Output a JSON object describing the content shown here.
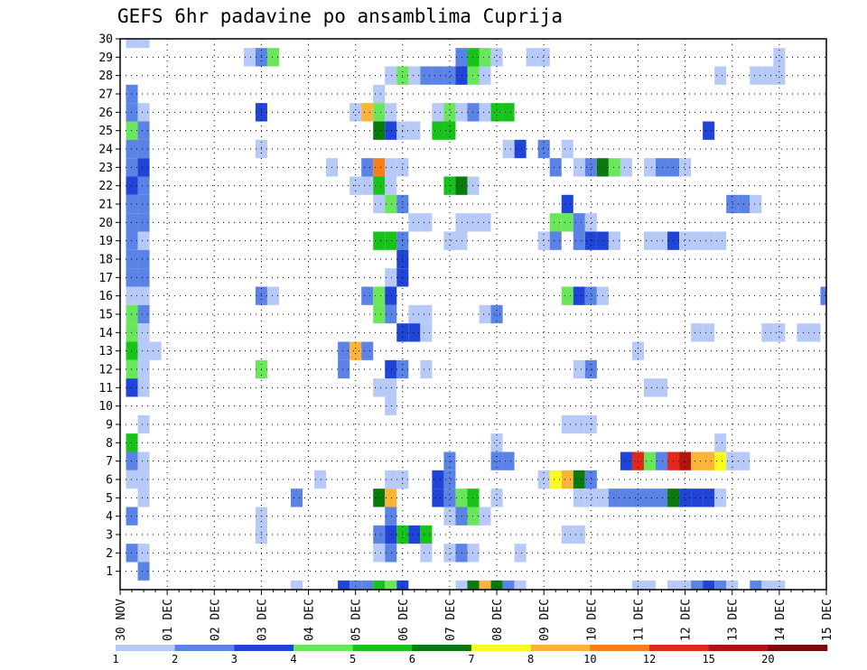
{
  "chart_data": {
    "type": "heatmap",
    "title": "GEFS 6hr padavine po ansamblima Cuprija",
    "xlabel": "",
    "ylabel": "",
    "x_tick_labels": [
      "30 NOV",
      "01 DEC",
      "02 DEC",
      "03 DEC",
      "04 DEC",
      "05 DEC",
      "06 DEC",
      "07 DEC",
      "08 DEC",
      "09 DEC",
      "10 DEC",
      "11 DEC",
      "12 DEC",
      "13 DEC",
      "14 DEC",
      "15 DEC"
    ],
    "x_steps": 60,
    "y_tick_labels": [
      "1",
      "2",
      "3",
      "4",
      "5",
      "6",
      "7",
      "8",
      "9",
      "10",
      "11",
      "12",
      "13",
      "14",
      "15",
      "16",
      "17",
      "18",
      "19",
      "20",
      "21",
      "22",
      "23",
      "24",
      "25",
      "26",
      "27",
      "28",
      "29",
      "30"
    ],
    "y_min": 0,
    "y_max": 30,
    "colorbar": {
      "labels": [
        "1",
        "2",
        "3",
        "4",
        "5",
        "6",
        "7",
        "8",
        "10",
        "12",
        "15",
        "20"
      ],
      "colors": [
        "#b6c9f7",
        "#5b83e6",
        "#1f44d6",
        "#69e65c",
        "#19c21a",
        "#0b7a0e",
        "#fafa1e",
        "#fbb33a",
        "#f77e1c",
        "#e0291b",
        "#b0150f",
        "#7a0a0a"
      ]
    },
    "cells": [
      [
        1,
        30,
        1
      ],
      [
        2,
        30,
        1
      ],
      [
        11,
        29,
        1
      ],
      [
        12,
        29,
        2
      ],
      [
        13,
        29,
        4
      ],
      [
        29,
        29,
        2
      ],
      [
        30,
        29,
        5
      ],
      [
        31,
        29,
        4
      ],
      [
        32,
        29,
        1
      ],
      [
        35,
        29,
        1
      ],
      [
        36,
        29,
        1
      ],
      [
        56,
        29,
        1
      ],
      [
        23,
        28,
        1
      ],
      [
        24,
        28,
        4
      ],
      [
        25,
        28,
        1
      ],
      [
        26,
        28,
        2
      ],
      [
        27,
        28,
        2
      ],
      [
        28,
        28,
        2
      ],
      [
        29,
        28,
        3
      ],
      [
        30,
        28,
        4
      ],
      [
        31,
        28,
        1
      ],
      [
        51,
        28,
        1
      ],
      [
        54,
        28,
        1
      ],
      [
        55,
        28,
        1
      ],
      [
        56,
        28,
        1
      ],
      [
        1,
        27,
        2
      ],
      [
        22,
        27,
        1
      ],
      [
        1,
        26,
        2
      ],
      [
        2,
        26,
        1
      ],
      [
        12,
        26,
        3
      ],
      [
        20,
        26,
        1
      ],
      [
        21,
        26,
        8
      ],
      [
        22,
        26,
        4
      ],
      [
        23,
        26,
        1
      ],
      [
        27,
        26,
        1
      ],
      [
        28,
        26,
        4
      ],
      [
        29,
        26,
        1
      ],
      [
        30,
        26,
        2
      ],
      [
        31,
        26,
        1
      ],
      [
        32,
        26,
        5
      ],
      [
        33,
        26,
        5
      ],
      [
        1,
        25,
        4
      ],
      [
        2,
        25,
        2
      ],
      [
        22,
        25,
        6
      ],
      [
        23,
        25,
        3
      ],
      [
        24,
        25,
        1
      ],
      [
        25,
        25,
        1
      ],
      [
        27,
        25,
        5
      ],
      [
        28,
        25,
        5
      ],
      [
        50,
        25,
        3
      ],
      [
        1,
        24,
        2
      ],
      [
        2,
        24,
        2
      ],
      [
        12,
        24,
        1
      ],
      [
        33,
        24,
        1
      ],
      [
        34,
        24,
        3
      ],
      [
        36,
        24,
        2
      ],
      [
        38,
        24,
        1
      ],
      [
        1,
        23,
        2
      ],
      [
        2,
        23,
        3
      ],
      [
        18,
        23,
        1
      ],
      [
        21,
        23,
        2
      ],
      [
        22,
        23,
        9
      ],
      [
        23,
        23,
        1
      ],
      [
        24,
        23,
        1
      ],
      [
        37,
        23,
        2
      ],
      [
        39,
        23,
        1
      ],
      [
        40,
        23,
        2
      ],
      [
        41,
        23,
        6
      ],
      [
        42,
        23,
        4
      ],
      [
        43,
        23,
        1
      ],
      [
        45,
        23,
        1
      ],
      [
        46,
        23,
        2
      ],
      [
        47,
        23,
        2
      ],
      [
        48,
        23,
        1
      ],
      [
        1,
        22,
        3
      ],
      [
        2,
        22,
        2
      ],
      [
        20,
        22,
        1
      ],
      [
        21,
        22,
        1
      ],
      [
        22,
        22,
        5
      ],
      [
        23,
        22,
        1
      ],
      [
        28,
        22,
        5
      ],
      [
        29,
        22,
        6
      ],
      [
        30,
        22,
        1
      ],
      [
        1,
        21,
        2
      ],
      [
        2,
        21,
        2
      ],
      [
        22,
        21,
        1
      ],
      [
        23,
        21,
        4
      ],
      [
        24,
        21,
        2
      ],
      [
        38,
        21,
        3
      ],
      [
        52,
        21,
        2
      ],
      [
        53,
        21,
        2
      ],
      [
        54,
        21,
        1
      ],
      [
        1,
        20,
        2
      ],
      [
        2,
        20,
        2
      ],
      [
        25,
        20,
        1
      ],
      [
        26,
        20,
        1
      ],
      [
        29,
        20,
        1
      ],
      [
        30,
        20,
        1
      ],
      [
        31,
        20,
        1
      ],
      [
        37,
        20,
        4
      ],
      [
        38,
        20,
        4
      ],
      [
        39,
        20,
        2
      ],
      [
        40,
        20,
        1
      ],
      [
        1,
        19,
        2
      ],
      [
        2,
        19,
        1
      ],
      [
        22,
        19,
        5
      ],
      [
        23,
        19,
        5
      ],
      [
        24,
        19,
        2
      ],
      [
        28,
        19,
        1
      ],
      [
        29,
        19,
        1
      ],
      [
        36,
        19,
        1
      ],
      [
        37,
        19,
        2
      ],
      [
        39,
        19,
        2
      ],
      [
        40,
        19,
        3
      ],
      [
        41,
        19,
        3
      ],
      [
        42,
        19,
        1
      ],
      [
        45,
        19,
        1
      ],
      [
        46,
        19,
        1
      ],
      [
        47,
        19,
        3
      ],
      [
        48,
        19,
        1
      ],
      [
        49,
        19,
        1
      ],
      [
        50,
        19,
        1
      ],
      [
        51,
        19,
        1
      ],
      [
        1,
        18,
        2
      ],
      [
        2,
        18,
        2
      ],
      [
        24,
        18,
        3
      ],
      [
        1,
        17,
        2
      ],
      [
        2,
        17,
        2
      ],
      [
        23,
        17,
        1
      ],
      [
        24,
        17,
        3
      ],
      [
        1,
        16,
        1
      ],
      [
        2,
        16,
        1
      ],
      [
        12,
        16,
        2
      ],
      [
        13,
        16,
        1
      ],
      [
        21,
        16,
        2
      ],
      [
        22,
        16,
        4
      ],
      [
        23,
        16,
        3
      ],
      [
        38,
        16,
        4
      ],
      [
        39,
        16,
        3
      ],
      [
        40,
        16,
        2
      ],
      [
        41,
        16,
        1
      ],
      [
        60,
        16,
        2
      ],
      [
        1,
        15,
        4
      ],
      [
        2,
        15,
        2
      ],
      [
        22,
        15,
        4
      ],
      [
        23,
        15,
        2
      ],
      [
        25,
        15,
        1
      ],
      [
        26,
        15,
        1
      ],
      [
        31,
        15,
        1
      ],
      [
        32,
        15,
        2
      ],
      [
        1,
        14,
        4
      ],
      [
        2,
        14,
        1
      ],
      [
        24,
        14,
        3
      ],
      [
        25,
        14,
        3
      ],
      [
        26,
        14,
        1
      ],
      [
        49,
        14,
        1
      ],
      [
        50,
        14,
        1
      ],
      [
        55,
        14,
        1
      ],
      [
        56,
        14,
        1
      ],
      [
        58,
        14,
        1
      ],
      [
        59,
        14,
        1
      ],
      [
        1,
        13,
        5
      ],
      [
        2,
        13,
        1
      ],
      [
        3,
        13,
        1
      ],
      [
        19,
        13,
        2
      ],
      [
        20,
        13,
        8
      ],
      [
        21,
        13,
        2
      ],
      [
        44,
        13,
        1
      ],
      [
        1,
        12,
        4
      ],
      [
        2,
        12,
        1
      ],
      [
        12,
        12,
        4
      ],
      [
        19,
        12,
        2
      ],
      [
        23,
        12,
        3
      ],
      [
        24,
        12,
        2
      ],
      [
        26,
        12,
        1
      ],
      [
        39,
        12,
        1
      ],
      [
        40,
        12,
        2
      ],
      [
        1,
        11,
        3
      ],
      [
        2,
        11,
        1
      ],
      [
        22,
        11,
        1
      ],
      [
        23,
        11,
        1
      ],
      [
        45,
        11,
        1
      ],
      [
        46,
        11,
        1
      ],
      [
        23,
        10,
        1
      ],
      [
        2,
        9,
        1
      ],
      [
        38,
        9,
        1
      ],
      [
        39,
        9,
        1
      ],
      [
        40,
        9,
        1
      ],
      [
        1,
        8,
        5
      ],
      [
        32,
        8,
        1
      ],
      [
        51,
        8,
        1
      ],
      [
        1,
        7,
        2
      ],
      [
        2,
        7,
        1
      ],
      [
        28,
        7,
        2
      ],
      [
        32,
        7,
        2
      ],
      [
        33,
        7,
        2
      ],
      [
        43,
        7,
        3
      ],
      [
        44,
        7,
        10
      ],
      [
        45,
        7,
        4
      ],
      [
        46,
        7,
        2
      ],
      [
        47,
        7,
        10
      ],
      [
        48,
        7,
        11
      ],
      [
        49,
        7,
        8
      ],
      [
        50,
        7,
        8
      ],
      [
        51,
        7,
        7
      ],
      [
        52,
        7,
        1
      ],
      [
        53,
        7,
        1
      ],
      [
        1,
        6,
        1
      ],
      [
        2,
        6,
        1
      ],
      [
        17,
        6,
        1
      ],
      [
        23,
        6,
        1
      ],
      [
        24,
        6,
        1
      ],
      [
        27,
        6,
        3
      ],
      [
        28,
        6,
        2
      ],
      [
        36,
        6,
        1
      ],
      [
        37,
        6,
        7
      ],
      [
        38,
        6,
        8
      ],
      [
        39,
        6,
        6
      ],
      [
        40,
        6,
        2
      ],
      [
        2,
        5,
        1
      ],
      [
        15,
        5,
        2
      ],
      [
        22,
        5,
        6
      ],
      [
        23,
        5,
        8
      ],
      [
        27,
        5,
        3
      ],
      [
        28,
        5,
        2
      ],
      [
        29,
        5,
        4
      ],
      [
        30,
        5,
        5
      ],
      [
        32,
        5,
        1
      ],
      [
        39,
        5,
        1
      ],
      [
        40,
        5,
        1
      ],
      [
        41,
        5,
        1
      ],
      [
        42,
        5,
        2
      ],
      [
        43,
        5,
        2
      ],
      [
        44,
        5,
        2
      ],
      [
        45,
        5,
        2
      ],
      [
        46,
        5,
        2
      ],
      [
        47,
        5,
        6
      ],
      [
        48,
        5,
        3
      ],
      [
        49,
        5,
        3
      ],
      [
        50,
        5,
        3
      ],
      [
        51,
        5,
        1
      ],
      [
        1,
        4,
        2
      ],
      [
        12,
        4,
        1
      ],
      [
        23,
        4,
        2
      ],
      [
        28,
        4,
        1
      ],
      [
        29,
        4,
        2
      ],
      [
        30,
        4,
        4
      ],
      [
        31,
        4,
        1
      ],
      [
        12,
        3,
        1
      ],
      [
        22,
        3,
        2
      ],
      [
        23,
        3,
        3
      ],
      [
        24,
        3,
        5
      ],
      [
        25,
        3,
        3
      ],
      [
        26,
        3,
        5
      ],
      [
        38,
        3,
        1
      ],
      [
        39,
        3,
        1
      ],
      [
        1,
        2,
        2
      ],
      [
        2,
        2,
        1
      ],
      [
        22,
        2,
        1
      ],
      [
        23,
        2,
        2
      ],
      [
        26,
        2,
        1
      ],
      [
        28,
        2,
        1
      ],
      [
        29,
        2,
        2
      ],
      [
        30,
        2,
        1
      ],
      [
        34,
        2,
        1
      ],
      [
        2,
        1,
        2
      ],
      [
        15,
        0,
        1
      ],
      [
        19,
        0,
        3
      ],
      [
        20,
        0,
        2
      ],
      [
        21,
        0,
        2
      ],
      [
        22,
        0,
        5
      ],
      [
        23,
        0,
        4
      ],
      [
        24,
        0,
        3
      ],
      [
        29,
        0,
        1
      ],
      [
        30,
        0,
        6
      ],
      [
        31,
        0,
        8
      ],
      [
        32,
        0,
        6
      ],
      [
        33,
        0,
        2
      ],
      [
        34,
        0,
        1
      ],
      [
        44,
        0,
        1
      ],
      [
        45,
        0,
        1
      ],
      [
        47,
        0,
        1
      ],
      [
        48,
        0,
        1
      ],
      [
        49,
        0,
        2
      ],
      [
        50,
        0,
        3
      ],
      [
        51,
        0,
        2
      ],
      [
        52,
        0,
        1
      ],
      [
        54,
        0,
        2
      ],
      [
        55,
        0,
        1
      ],
      [
        56,
        0,
        1
      ]
    ]
  }
}
